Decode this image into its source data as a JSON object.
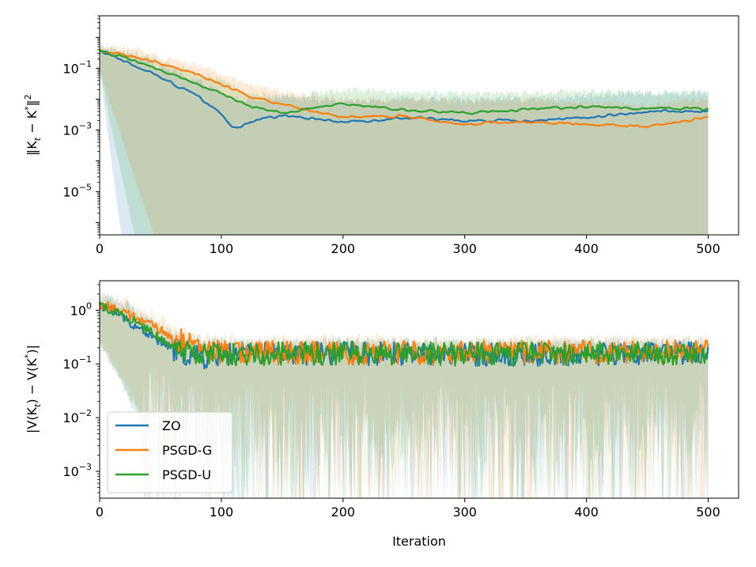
{
  "colors": {
    "ZO": "#1f77b4",
    "PSGD-G": "#ff7f0e",
    "PSGD-U": "#2ca02c"
  },
  "chart_data": [
    {
      "type": "line",
      "title": "",
      "xlabel": "",
      "ylabel": "‖K_t − K*‖²",
      "ylabel_parts": {
        "a": "‖K",
        "sub": "t",
        "b": " − K",
        "sup1": "*",
        "c": "‖",
        "sup2": "2"
      },
      "yscale": "log",
      "xlim": [
        0,
        525
      ],
      "ylim_log10": [
        -6.4,
        0.7
      ],
      "xticks": [
        0,
        100,
        200,
        300,
        400,
        500
      ],
      "xtick_labels": [
        "0",
        "100",
        "200",
        "300",
        "400",
        "500"
      ],
      "yticks_log10": [
        -5,
        -3,
        -1
      ],
      "ytick_labels": [
        {
          "base": "10",
          "exp": "−5"
        },
        {
          "base": "10",
          "exp": "−3"
        },
        {
          "base": "10",
          "exp": "−1"
        }
      ],
      "series": [
        {
          "name": "ZO",
          "x": [
            0,
            20,
            40,
            60,
            80,
            100,
            110,
            130,
            150,
            200,
            250,
            300,
            350,
            400,
            450,
            500
          ],
          "log10_y": [
            -0.45,
            -0.75,
            -1.1,
            -1.5,
            -1.9,
            -2.5,
            -2.95,
            -2.7,
            -2.5,
            -2.75,
            -2.6,
            -2.7,
            -2.7,
            -2.6,
            -2.4,
            -2.4
          ],
          "band_top_log10": [
            -0.35,
            -0.5,
            -0.8,
            -1.1,
            -1.4,
            -1.8,
            -2.0,
            -2.0,
            -1.9,
            -2.1,
            -2.0,
            -2.0,
            -2.0,
            -1.9,
            -1.8,
            -1.8
          ],
          "band_bottom_start": 20
        },
        {
          "name": "PSGD-G",
          "x": [
            0,
            20,
            40,
            60,
            80,
            100,
            120,
            150,
            200,
            250,
            300,
            350,
            400,
            450,
            500
          ],
          "log10_y": [
            -0.45,
            -0.55,
            -0.75,
            -0.95,
            -1.2,
            -1.5,
            -1.85,
            -2.2,
            -2.6,
            -2.55,
            -2.8,
            -2.75,
            -2.8,
            -2.9,
            -2.6
          ],
          "band_top_log10": [
            -0.3,
            -0.35,
            -0.5,
            -0.7,
            -0.9,
            -1.2,
            -1.5,
            -1.8,
            -2.0,
            -2.0,
            -2.1,
            -2.0,
            -2.1,
            -2.2,
            -2.0
          ],
          "band_bottom_start": 50
        },
        {
          "name": "PSGD-U",
          "x": [
            0,
            20,
            40,
            60,
            80,
            100,
            120,
            150,
            200,
            250,
            300,
            350,
            400,
            450,
            500
          ],
          "log10_y": [
            -0.45,
            -0.65,
            -0.9,
            -1.2,
            -1.5,
            -1.8,
            -2.2,
            -2.45,
            -2.15,
            -2.35,
            -2.45,
            -2.35,
            -2.25,
            -2.3,
            -2.3
          ],
          "band_top_log10": [
            -0.3,
            -0.45,
            -0.65,
            -0.9,
            -1.15,
            -1.4,
            -1.8,
            -1.95,
            -1.7,
            -1.8,
            -1.8,
            -1.8,
            -1.75,
            -1.8,
            -1.8
          ],
          "band_bottom_start": 32
        }
      ]
    },
    {
      "type": "line",
      "title": "",
      "xlabel": "Iteration",
      "ylabel": "|V(K_t) − V(K*)|",
      "ylabel_parts": {
        "a": "|V(K",
        "sub": "t",
        "b": ") − V(K",
        "sup1": "*",
        "c": ")|",
        "sup2": ""
      },
      "yscale": "log",
      "xlim": [
        0,
        525
      ],
      "ylim_log10": [
        -3.5,
        0.55
      ],
      "xticks": [
        0,
        100,
        200,
        300,
        400,
        500
      ],
      "xtick_labels": [
        "0",
        "100",
        "200",
        "300",
        "400",
        "500"
      ],
      "yticks_log10": [
        -3,
        -2,
        -1,
        0
      ],
      "ytick_labels": [
        {
          "base": "10",
          "exp": "−3"
        },
        {
          "base": "10",
          "exp": "−2"
        },
        {
          "base": "10",
          "exp": "−1"
        },
        {
          "base": "10",
          "exp": "0"
        }
      ],
      "legend": {
        "location": "lower-left",
        "entries": [
          "ZO",
          "PSGD-G",
          "PSGD-U"
        ]
      },
      "series": [
        {
          "name": "ZO",
          "x": [
            0,
            10,
            20,
            30,
            40,
            50,
            60,
            70,
            80,
            90,
            100,
            200,
            300,
            400,
            500
          ],
          "log10_y": [
            0.1,
            0.0,
            -0.15,
            -0.3,
            -0.45,
            -0.6,
            -0.72,
            -0.82,
            -0.88,
            -0.88,
            -0.82,
            -0.8,
            -0.82,
            -0.82,
            -0.8
          ],
          "band_top_log10": [
            0.25,
            0.2,
            0.1,
            -0.05,
            -0.2,
            -0.35,
            -0.45,
            -0.55,
            -0.55,
            -0.6,
            -0.6,
            -0.6,
            -0.6,
            -0.6,
            -0.6
          ]
        },
        {
          "name": "PSGD-G",
          "x": [
            0,
            10,
            20,
            30,
            40,
            50,
            60,
            70,
            80,
            90,
            100,
            200,
            300,
            400,
            500
          ],
          "log10_y": [
            0.1,
            0.05,
            -0.05,
            -0.15,
            -0.25,
            -0.38,
            -0.5,
            -0.6,
            -0.68,
            -0.75,
            -0.78,
            -0.8,
            -0.78,
            -0.78,
            -0.75
          ],
          "band_top_log10": [
            0.3,
            0.25,
            0.15,
            0.05,
            -0.05,
            -0.15,
            -0.28,
            -0.38,
            -0.45,
            -0.5,
            -0.55,
            -0.55,
            -0.55,
            -0.55,
            -0.55
          ]
        },
        {
          "name": "PSGD-U",
          "x": [
            0,
            10,
            20,
            30,
            40,
            50,
            60,
            70,
            80,
            90,
            100,
            200,
            300,
            400,
            500
          ],
          "log10_y": [
            0.1,
            0.0,
            -0.1,
            -0.22,
            -0.38,
            -0.52,
            -0.64,
            -0.74,
            -0.8,
            -0.82,
            -0.82,
            -0.8,
            -0.82,
            -0.8,
            -0.8
          ],
          "band_top_log10": [
            0.25,
            0.2,
            0.1,
            0.0,
            -0.15,
            -0.28,
            -0.4,
            -0.5,
            -0.55,
            -0.58,
            -0.58,
            -0.58,
            -0.58,
            -0.58,
            -0.58
          ]
        }
      ]
    }
  ]
}
